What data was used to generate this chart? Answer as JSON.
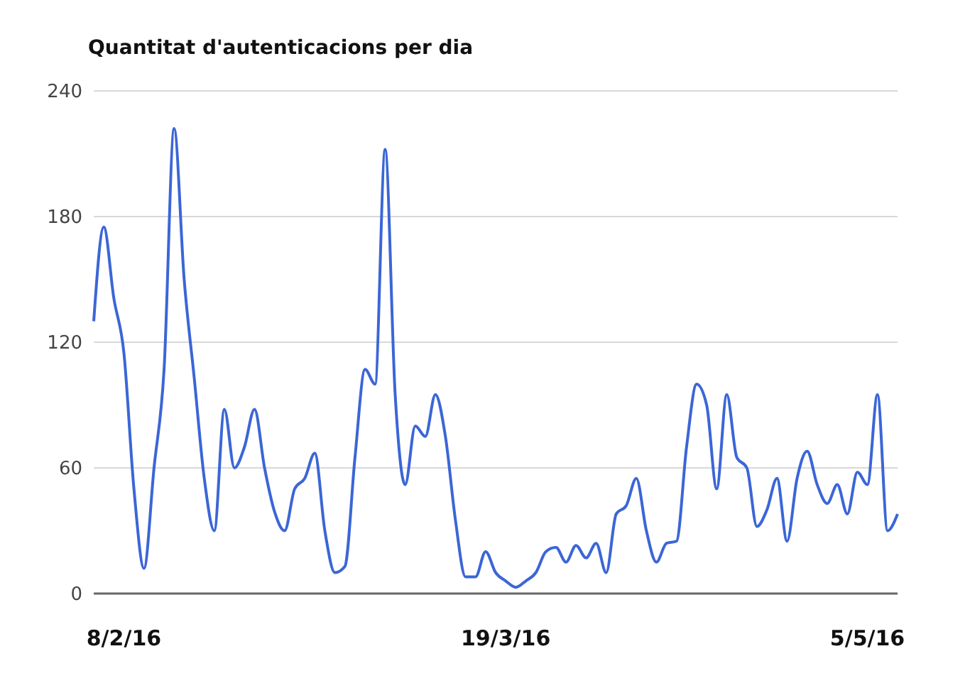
{
  "chart_data": {
    "type": "line",
    "title": "Quantitat d'autenticacions per dia",
    "categories": [
      null,
      null,
      null,
      "8/2/16",
      null,
      null,
      null,
      null,
      null,
      null,
      null,
      null,
      null,
      null,
      null,
      null,
      null,
      null,
      null,
      null,
      null,
      null,
      null,
      null,
      null,
      null,
      null,
      null,
      null,
      null,
      null,
      null,
      null,
      null,
      null,
      null,
      null,
      null,
      null,
      null,
      null,
      "19/3/16",
      null,
      null,
      null,
      null,
      null,
      null,
      null,
      null,
      null,
      null,
      null,
      null,
      null,
      null,
      null,
      null,
      null,
      null,
      null,
      null,
      null,
      null,
      null,
      null,
      null,
      null,
      null,
      null,
      null,
      null,
      null,
      null,
      null,
      null,
      null,
      "5/5/16",
      null,
      null,
      null
    ],
    "series": [
      {
        "color": "#3b66d6",
        "values": [
          130,
          175,
          141,
          115,
          50,
          12,
          60,
          107,
          222,
          150,
          103,
          55,
          30,
          88,
          60,
          70,
          88,
          60,
          39,
          30,
          50,
          55,
          67,
          30,
          10,
          13,
          65,
          107,
          100,
          212,
          95,
          52,
          80,
          75,
          95,
          75,
          35,
          8,
          8,
          20,
          10,
          6,
          3,
          6,
          10,
          20,
          22,
          15,
          23,
          17,
          24,
          10,
          38,
          42,
          55,
          30,
          15,
          24,
          25,
          70,
          100,
          90,
          50,
          95,
          65,
          60,
          32,
          40,
          55,
          25,
          55,
          68,
          52,
          43,
          52,
          38,
          58,
          52,
          95,
          30,
          38
        ]
      }
    ],
    "ylim": [
      0,
      240
    ],
    "yticks": [
      0,
      60,
      120,
      180,
      240
    ],
    "grid": "y",
    "legend": false,
    "marker": "none",
    "line_style": "solid"
  }
}
